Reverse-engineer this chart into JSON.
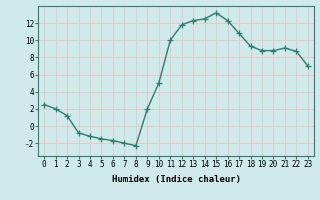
{
  "x": [
    0,
    1,
    2,
    3,
    4,
    5,
    6,
    7,
    8,
    9,
    10,
    11,
    12,
    13,
    14,
    15,
    16,
    17,
    18,
    19,
    20,
    21,
    22,
    23
  ],
  "y": [
    2.5,
    2.0,
    1.2,
    -0.8,
    -1.2,
    -1.5,
    -1.7,
    -2.0,
    -2.3,
    2.0,
    5.0,
    10.0,
    11.8,
    12.3,
    12.5,
    13.2,
    12.3,
    10.8,
    9.3,
    8.8,
    8.8,
    9.1,
    8.7,
    7.0
  ],
  "line_color": "#2e7d6e",
  "marker": "+",
  "marker_size": 4,
  "linewidth": 1.0,
  "background_color": "#ceeaea",
  "grid_color": "#e8c8c8",
  "xlabel": "Humidex (Indice chaleur)",
  "xlim": [
    -0.5,
    23.5
  ],
  "ylim": [
    -3.5,
    14.0
  ],
  "xticks": [
    0,
    1,
    2,
    3,
    4,
    5,
    6,
    7,
    8,
    9,
    10,
    11,
    12,
    13,
    14,
    15,
    16,
    17,
    18,
    19,
    20,
    21,
    22,
    23
  ],
  "yticks": [
    -2,
    0,
    2,
    4,
    6,
    8,
    10,
    12
  ],
  "xlabel_fontsize": 6.5,
  "tick_fontsize": 5.5
}
